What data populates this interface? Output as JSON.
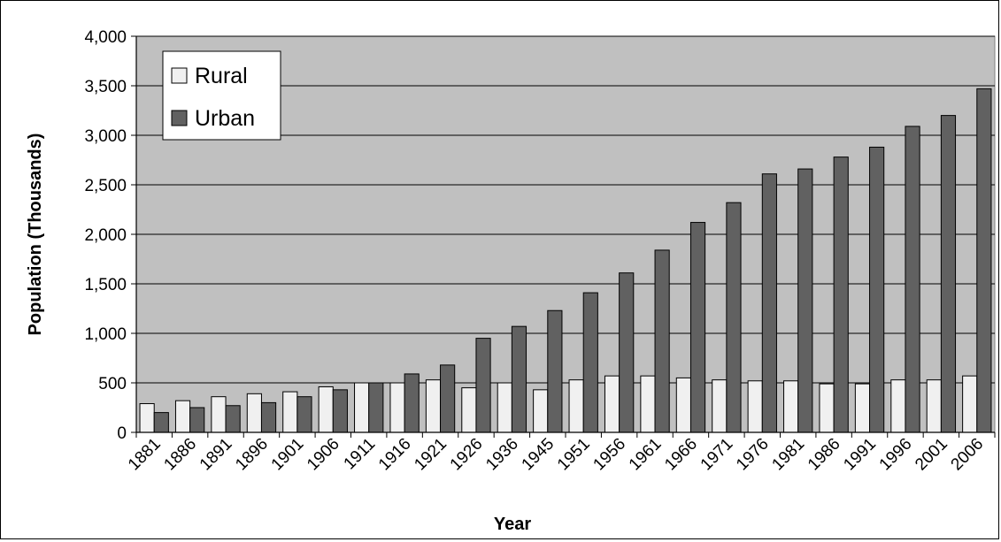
{
  "chart_data": {
    "type": "bar",
    "title": "",
    "xlabel": "Year",
    "ylabel": "Population (Thousands)",
    "ylim": [
      0,
      4000
    ],
    "yticks": [
      0,
      500,
      1000,
      1500,
      2000,
      2500,
      3000,
      3500,
      4000
    ],
    "ytick_labels": [
      "0",
      "500",
      "1,000",
      "1,500",
      "2,000",
      "2,500",
      "3,000",
      "3,500",
      "4,000"
    ],
    "grid": "horizontal",
    "legend": "top-left",
    "categories": [
      "1881",
      "1886",
      "1891",
      "1896",
      "1901",
      "1906",
      "1911",
      "1916",
      "1921",
      "1926",
      "1936",
      "1945",
      "1951",
      "1956",
      "1961",
      "1966",
      "1971",
      "1976",
      "1981",
      "1986",
      "1991",
      "1996",
      "2001",
      "2006"
    ],
    "series": [
      {
        "name": "Rural",
        "color": "#f0f0f0",
        "values": [
          290,
          320,
          360,
          390,
          410,
          460,
          500,
          500,
          530,
          450,
          500,
          430,
          530,
          570,
          570,
          550,
          530,
          520,
          520,
          490,
          490,
          530,
          530,
          570
        ]
      },
      {
        "name": "Urban",
        "color": "#616161",
        "values": [
          200,
          250,
          270,
          300,
          360,
          430,
          500,
          590,
          680,
          950,
          1070,
          1230,
          1410,
          1610,
          1840,
          2120,
          2320,
          2610,
          2660,
          2780,
          2880,
          3090,
          3200,
          3470
        ]
      }
    ],
    "plot_background": "#c0c0c0"
  }
}
